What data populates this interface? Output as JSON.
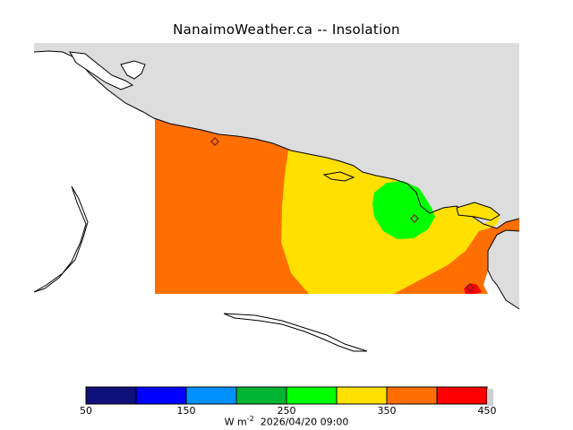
{
  "title": "NanaimoWeather.ca -- Insolation",
  "map": {
    "land_color": "#dddddd",
    "water_color": "#ffffff",
    "coast_color": "#000000",
    "station_marker": "diamond-icon"
  },
  "colorbar": {
    "levels": [
      {
        "color": "#10107a"
      },
      {
        "color": "#0000ff"
      },
      {
        "color": "#0090ff"
      },
      {
        "color": "#00b434"
      },
      {
        "color": "#00ff00"
      },
      {
        "color": "#ffe000"
      },
      {
        "color": "#ff6e00"
      },
      {
        "color": "#ff0000"
      }
    ],
    "tick_labels": [
      "50",
      "150",
      "250",
      "350",
      "450"
    ],
    "unit_base": "W m",
    "unit_exp": "-2",
    "timestamp": "2026/04/20 09:00"
  }
}
